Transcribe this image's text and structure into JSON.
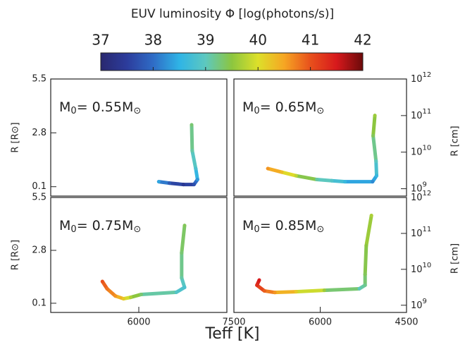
{
  "colorbar": {
    "title": "EUV luminosity Φ [log(photons/s)]",
    "clim": [
      37,
      42
    ],
    "ticks": [
      37,
      38,
      39,
      40,
      41,
      42
    ],
    "colormap": [
      "#29286f",
      "#2c3c9c",
      "#2f6cc6",
      "#2fb4e6",
      "#5dc8bf",
      "#8cc63f",
      "#dde02a",
      "#f6a623",
      "#e8501c",
      "#d7191c",
      "#6b0a0a"
    ]
  },
  "xlabel": "Teff [K]",
  "chart_data": [
    {
      "type": "line",
      "label_parts": [
        "M",
        "0",
        "= 0.55M",
        "⊙"
      ],
      "xlim": [
        7500,
        4500
      ],
      "ylim": [
        -0.37,
        5.5
      ],
      "yticks": [
        0.1,
        2.8,
        5.5
      ],
      "ylabel": "R [R⊙]",
      "x": [
        5100,
        5090,
        5030,
        5000,
        5060,
        5240,
        5480,
        5660
      ],
      "y": [
        3.2,
        1.9,
        1.0,
        0.46,
        0.21,
        0.21,
        0.28,
        0.35
      ],
      "phi": [
        39.3,
        39.1,
        38.8,
        38.3,
        37.7,
        37.4,
        37.8,
        38.4
      ]
    },
    {
      "type": "line",
      "label_parts": [
        "M",
        "0",
        "= 0.65M",
        "⊙"
      ],
      "xlim": [
        7500,
        4500
      ],
      "ylim": [
        -0.37,
        5.5
      ],
      "y2lim": [
        630000000,
        1000000000000
      ],
      "y2log": true,
      "y2ticks": [
        {
          "value": 1000000000,
          "label": "10",
          "exponent": "9"
        },
        {
          "value": 10000000000,
          "label": "10",
          "exponent": "10"
        },
        {
          "value": 100000000000,
          "label": "10",
          "exponent": "11"
        },
        {
          "value": 1000000000000,
          "label": "10",
          "exponent": "12"
        }
      ],
      "y2label": "R [cm]",
      "x": [
        5050,
        5080,
        5030,
        5020,
        5090,
        5570,
        5800,
        6060,
        6420,
        6670,
        6910
      ],
      "y": [
        3.67,
        2.65,
        1.38,
        0.65,
        0.35,
        0.35,
        0.4,
        0.46,
        0.65,
        0.83,
        1.01
      ],
      "phi": [
        39.6,
        39.4,
        39.0,
        38.6,
        38.2,
        38.6,
        38.9,
        39.1,
        39.8,
        40.3,
        40.6
      ]
    },
    {
      "type": "line",
      "label_parts": [
        "M",
        "0",
        "= 0.75M",
        "⊙"
      ],
      "xlim": [
        7500,
        4500
      ],
      "ylim": [
        -0.37,
        5.5
      ],
      "yticks": [
        0.1,
        2.8,
        5.5
      ],
      "ylabel": "R [R⊙]",
      "xticks": [
        6000
      ],
      "x": [
        5220,
        5270,
        5270,
        5220,
        5360,
        5960,
        6140,
        6260,
        6400,
        6540,
        6620
      ],
      "y": [
        4.07,
        2.67,
        1.39,
        0.91,
        0.66,
        0.55,
        0.4,
        0.33,
        0.47,
        0.84,
        1.21
      ],
      "phi": [
        39.4,
        39.3,
        39.1,
        38.8,
        38.9,
        39.3,
        39.7,
        40.2,
        40.6,
        40.8,
        41.0
      ]
    },
    {
      "type": "line",
      "label_parts": [
        "M",
        "0",
        "= 0.85M",
        "⊙"
      ],
      "xlim": [
        7500,
        4500
      ],
      "ylim": [
        -0.37,
        5.5
      ],
      "y2lim": [
        630000000,
        1000000000000
      ],
      "y2log": true,
      "y2ticks": [
        {
          "value": 1000000000,
          "label": "10",
          "exponent": "9"
        },
        {
          "value": 10000000000,
          "label": "10",
          "exponent": "10"
        },
        {
          "value": 100000000000,
          "label": "10",
          "exponent": "11"
        },
        {
          "value": 1000000000000,
          "label": "10",
          "exponent": "12"
        }
      ],
      "y2label": "R [cm]",
      "xticks": [
        7500,
        6000,
        4500
      ],
      "x": [
        5110,
        5200,
        5220,
        5220,
        5320,
        5930,
        6420,
        6790,
        6970,
        7100,
        7060
      ],
      "y": [
        4.58,
        3.04,
        1.57,
        1.02,
        0.84,
        0.76,
        0.69,
        0.65,
        0.73,
        1.02,
        1.28
      ],
      "phi": [
        39.7,
        39.5,
        39.4,
        39.2,
        39.0,
        39.6,
        40.2,
        40.6,
        40.9,
        41.3,
        41.5
      ]
    }
  ]
}
